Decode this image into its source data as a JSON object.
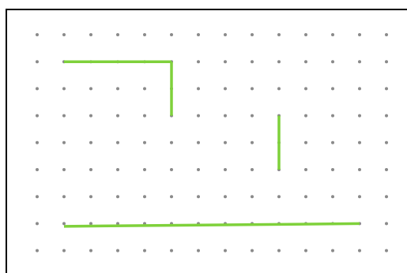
{
  "grid": {
    "columns": 14,
    "rows": 9,
    "dot_color": "#8a8a8a"
  },
  "segments_color": "#7fd13b",
  "frame_color": "#000000",
  "segments": [
    {
      "id": "top-horizontal",
      "from": [
        1,
        1
      ],
      "to": [
        5,
        1
      ]
    },
    {
      "id": "left-vertical",
      "from": [
        5,
        1
      ],
      "to": [
        5,
        3
      ]
    },
    {
      "id": "right-vertical",
      "from": [
        9,
        3
      ],
      "to": [
        9,
        5
      ]
    },
    {
      "id": "bottom-horizontal",
      "from": [
        1,
        7.1
      ],
      "to": [
        12,
        7
      ]
    }
  ]
}
